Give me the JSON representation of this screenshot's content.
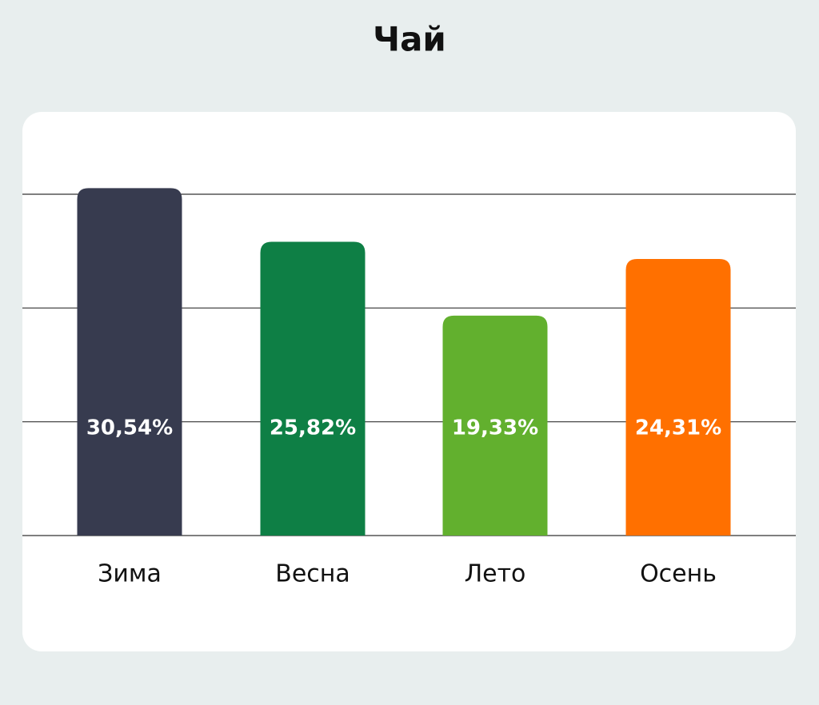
{
  "chart_data": {
    "type": "bar",
    "title": "Чай",
    "categories": [
      "Зима",
      "Весна",
      "Лето",
      "Осень"
    ],
    "values": [
      30.54,
      25.82,
      19.33,
      24.31
    ],
    "value_labels": [
      "30,54%",
      "25,82%",
      "19,33%",
      "24,31%"
    ],
    "colors": [
      "#373b4f",
      "#0e7f45",
      "#62b02e",
      "#ff7000"
    ],
    "ylim": [
      0,
      30
    ],
    "yticks": [
      0,
      10,
      20,
      30
    ],
    "grid": true
  }
}
